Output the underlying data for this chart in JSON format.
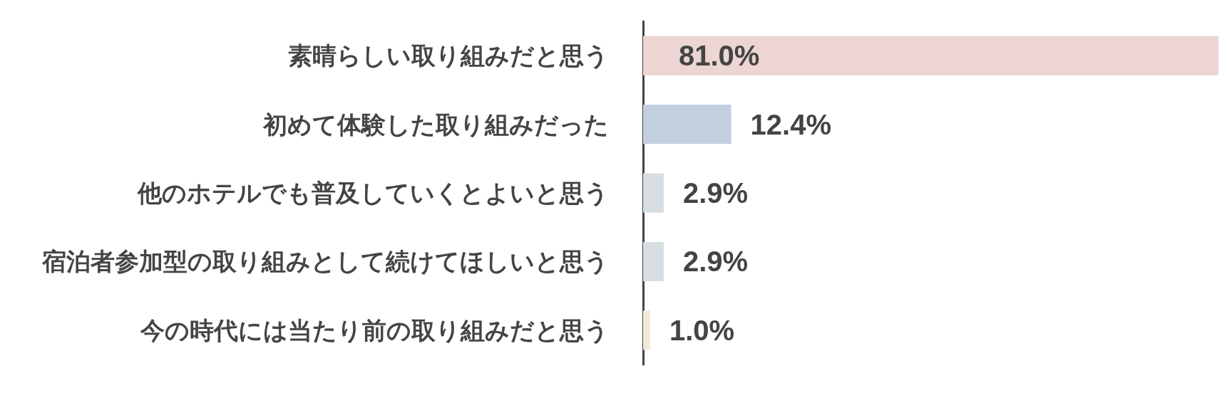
{
  "chart_data": {
    "type": "bar",
    "orientation": "horizontal",
    "categories": [
      "素晴らしい取り組みだと思う",
      "初めて体験した取り組みだった",
      "他のホテルでも普及していくとよいと思う",
      "宿泊者参加型の取り組みとして続けてほしいと思う",
      "今の時代には当たり前の取り組みだと思う"
    ],
    "values": [
      81.0,
      12.4,
      2.9,
      2.9,
      1.0
    ],
    "value_labels": [
      "81.0%",
      "12.4%",
      "2.9%",
      "2.9%",
      "1.0%"
    ],
    "colors": [
      "#ecd5d2",
      "#c3d0df",
      "#d6dee1",
      "#d6dee1",
      "#f3e9da"
    ],
    "xlim": [
      0,
      81
    ],
    "tick_labels": "y"
  }
}
